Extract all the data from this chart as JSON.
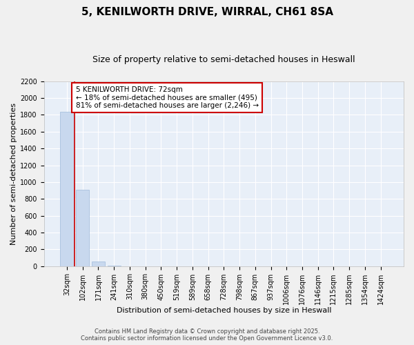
{
  "title": "5, KENILWORTH DRIVE, WIRRAL, CH61 8SA",
  "subtitle": "Size of property relative to semi-detached houses in Heswall",
  "xlabel": "Distribution of semi-detached houses by size in Heswall",
  "ylabel": "Number of semi-detached properties",
  "categories": [
    "32sqm",
    "102sqm",
    "171sqm",
    "241sqm",
    "310sqm",
    "380sqm",
    "450sqm",
    "519sqm",
    "589sqm",
    "658sqm",
    "728sqm",
    "798sqm",
    "867sqm",
    "937sqm",
    "1006sqm",
    "1076sqm",
    "1146sqm",
    "1215sqm",
    "1285sqm",
    "1354sqm",
    "1424sqm"
  ],
  "values": [
    1840,
    910,
    55,
    8,
    0,
    0,
    0,
    0,
    0,
    0,
    0,
    0,
    0,
    0,
    0,
    0,
    0,
    0,
    0,
    0,
    0
  ],
  "bar_color": "#c8d8ee",
  "bar_edge_color": "#a8c0de",
  "highlight_line_color": "#cc0000",
  "annotation_text": "5 KENILWORTH DRIVE: 72sqm\n← 18% of semi-detached houses are smaller (495)\n81% of semi-detached houses are larger (2,246) →",
  "annotation_box_color": "#cc0000",
  "ylim_max": 2200,
  "yticks": [
    0,
    200,
    400,
    600,
    800,
    1000,
    1200,
    1400,
    1600,
    1800,
    2000,
    2200
  ],
  "background_color": "#e8eff8",
  "grid_color": "#ffffff",
  "footer": "Contains HM Land Registry data © Crown copyright and database right 2025.\nContains public sector information licensed under the Open Government Licence v3.0.",
  "title_fontsize": 11,
  "subtitle_fontsize": 9,
  "xlabel_fontsize": 8,
  "ylabel_fontsize": 8,
  "tick_fontsize": 7,
  "annot_fontsize": 7.5,
  "footer_fontsize": 6
}
